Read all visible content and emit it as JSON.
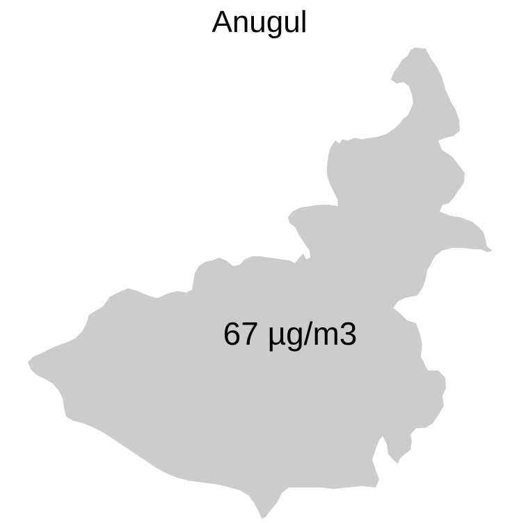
{
  "map": {
    "title": "Anugul",
    "value_label": "67 µg/m3",
    "fill_color": "#cccccc",
    "background_color": "#ffffff",
    "text_color": "#000000"
  }
}
